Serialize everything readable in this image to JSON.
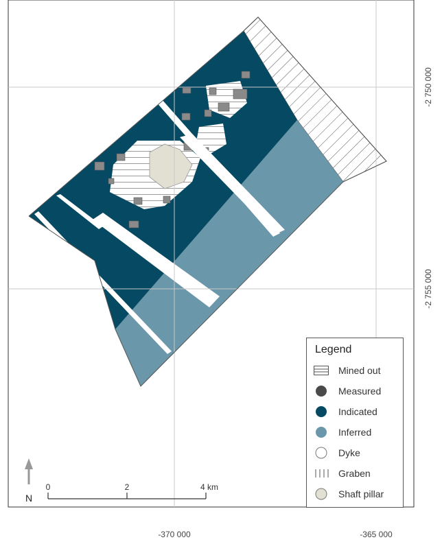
{
  "colors": {
    "indicated": "#054a62",
    "inferred": "#6b97aa",
    "measured": "#4a4a4a",
    "measured_block": "#8a8a8a",
    "mined_out": "#ffffff",
    "shaft_pillar": "#e2e0d2",
    "grid": "#c8c8c8",
    "frame": "#333333"
  },
  "axes": {
    "x_ticks": [
      {
        "value": -370000,
        "label": "-370 000"
      },
      {
        "value": -365000,
        "label": "-365 000"
      }
    ],
    "y_ticks": [
      {
        "value": -2750000,
        "label": "-2 750 000"
      },
      {
        "value": -2755000,
        "label": "-2 755 000"
      }
    ]
  },
  "legend": {
    "title": "Legend",
    "items": [
      {
        "label": "Mined out",
        "symbol": "hatch-horizontal"
      },
      {
        "label": "Measured",
        "symbol": "circle-measured"
      },
      {
        "label": "Indicated",
        "symbol": "circle-indicated"
      },
      {
        "label": "Inferred",
        "symbol": "circle-inferred"
      },
      {
        "label": "Dyke",
        "symbol": "circle-dyke"
      },
      {
        "label": "Graben",
        "symbol": "hatch-vertical"
      },
      {
        "label": "Shaft pillar",
        "symbol": "circle-shaft-pillar"
      }
    ]
  },
  "north_arrow": {
    "label": "N"
  },
  "scale_bar": {
    "ticks": [
      "0",
      "2",
      "4 km"
    ]
  }
}
